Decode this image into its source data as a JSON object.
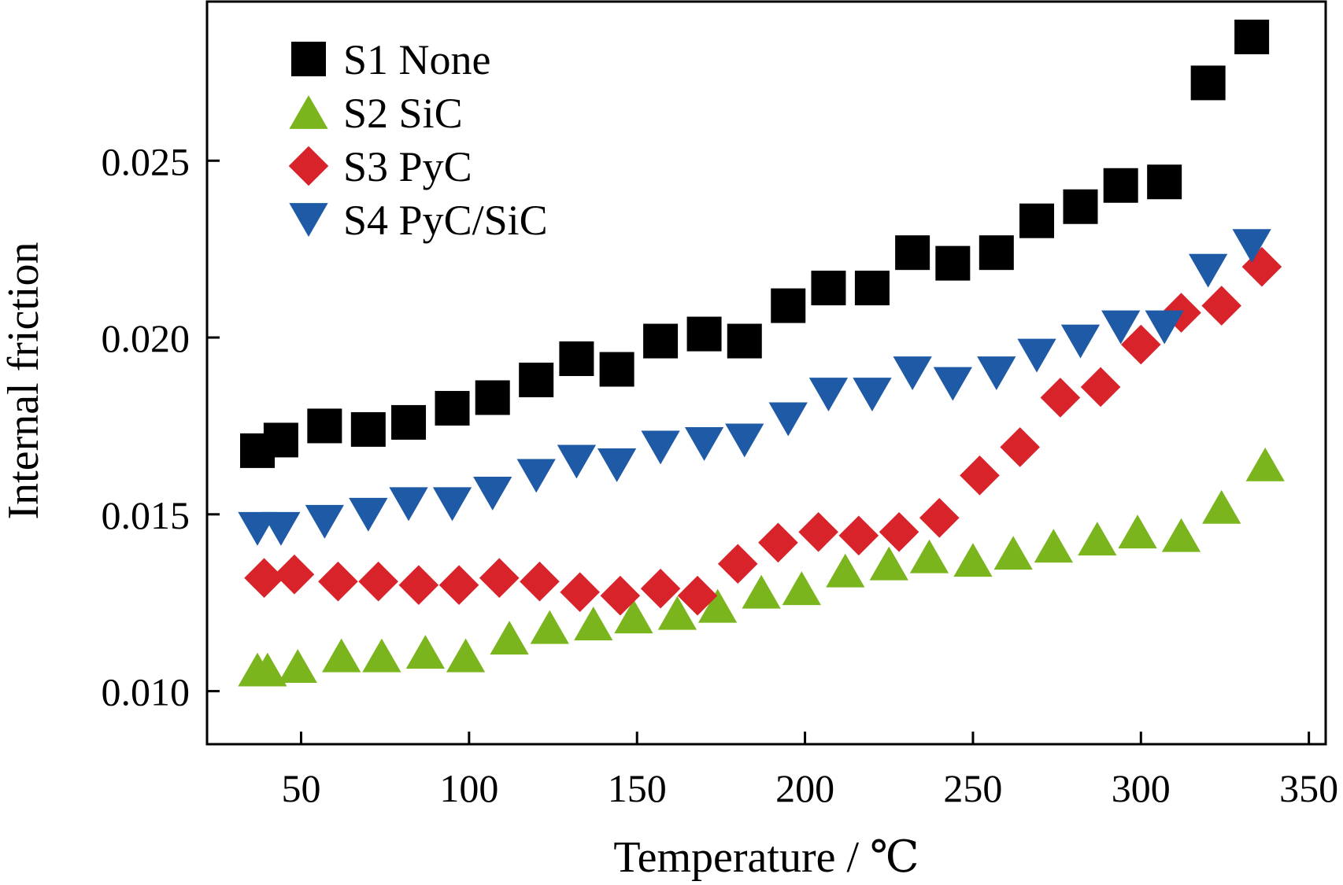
{
  "chart_data": {
    "type": "scatter",
    "xlabel": "Temperature / ℃",
    "ylabel": "Internal friction",
    "xlim": [
      22,
      355
    ],
    "ylim": [
      0.0085,
      0.0295
    ],
    "x_ticks": [
      50,
      100,
      150,
      200,
      250,
      300,
      350
    ],
    "x_tick_labels": [
      "50",
      "100",
      "150",
      "200",
      "250",
      "300",
      "350"
    ],
    "y_ticks": [
      0.01,
      0.015,
      0.02,
      0.025
    ],
    "y_tick_labels": [
      "0.010",
      "0.015",
      "0.020",
      "0.025"
    ],
    "grid": false,
    "legend_position": "top-left",
    "series": [
      {
        "name": "S1 None",
        "marker": "square",
        "color": "#000000",
        "x": [
          37,
          44,
          57,
          70,
          82,
          95,
          107,
          120,
          132,
          144,
          157,
          170,
          182,
          195,
          207,
          220,
          232,
          244,
          257,
          269,
          282,
          294,
          307,
          320,
          333
        ],
        "y": [
          0.0168,
          0.0171,
          0.0175,
          0.0174,
          0.0176,
          0.018,
          0.0183,
          0.0188,
          0.0194,
          0.0191,
          0.0199,
          0.0201,
          0.0199,
          0.0209,
          0.0214,
          0.0214,
          0.0224,
          0.0221,
          0.0224,
          0.0233,
          0.0237,
          0.0243,
          0.0244,
          0.0272,
          0.0285
        ]
      },
      {
        "name": "S2 SiC",
        "marker": "triangle-up",
        "color": "#7ab51d",
        "x": [
          37,
          40,
          49,
          62,
          74,
          87,
          99,
          112,
          124,
          137,
          149,
          162,
          174,
          187,
          199,
          212,
          225,
          237,
          250,
          262,
          274,
          287,
          299,
          312,
          324,
          337
        ],
        "y": [
          0.0106,
          0.0106,
          0.0107,
          0.011,
          0.011,
          0.0111,
          0.011,
          0.0115,
          0.0118,
          0.0119,
          0.0121,
          0.0122,
          0.0124,
          0.0128,
          0.0129,
          0.0134,
          0.0136,
          0.0138,
          0.0137,
          0.0139,
          0.0141,
          0.0143,
          0.0145,
          0.0144,
          0.0152,
          0.0164
        ]
      },
      {
        "name": "S3 PyC",
        "marker": "diamond",
        "color": "#d9232a",
        "x": [
          39,
          48,
          61,
          73,
          85,
          97,
          109,
          121,
          133,
          145,
          157,
          168,
          180,
          192,
          204,
          216,
          228,
          240,
          252,
          264,
          276,
          288,
          300,
          312,
          324,
          336
        ],
        "y": [
          0.0132,
          0.0133,
          0.0131,
          0.0131,
          0.013,
          0.013,
          0.0132,
          0.0131,
          0.0128,
          0.0127,
          0.0129,
          0.0127,
          0.0136,
          0.0142,
          0.0145,
          0.0144,
          0.0145,
          0.0149,
          0.0161,
          0.0169,
          0.0183,
          0.0186,
          0.0198,
          0.0207,
          0.0209,
          0.022
        ]
      },
      {
        "name": "S4 PyC/SiC",
        "marker": "triangle-down",
        "color": "#1f5aa6",
        "x": [
          37,
          44,
          57,
          70,
          82,
          95,
          107,
          120,
          132,
          144,
          157,
          170,
          182,
          195,
          207,
          220,
          232,
          244,
          257,
          269,
          282,
          294,
          307,
          320,
          333
        ],
        "y": [
          0.0146,
          0.0146,
          0.0148,
          0.015,
          0.0153,
          0.0153,
          0.0156,
          0.0161,
          0.0165,
          0.0164,
          0.0169,
          0.017,
          0.0171,
          0.0177,
          0.0184,
          0.0184,
          0.019,
          0.0187,
          0.019,
          0.0195,
          0.0199,
          0.0203,
          0.0203,
          0.0219,
          0.0226
        ]
      }
    ]
  }
}
